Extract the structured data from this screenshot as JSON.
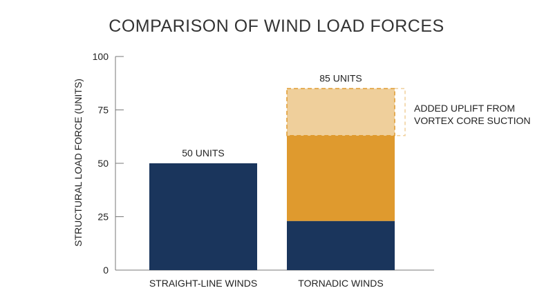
{
  "chart_data": {
    "type": "bar",
    "title": "COMPARISON OF WIND LOAD FORCES",
    "ylabel": "STRUCTURAL LOAD FORCE (UNITS)",
    "xlabel": "",
    "ylim": [
      0,
      100
    ],
    "yticks": [
      0,
      25,
      50,
      75,
      100
    ],
    "stacked": true,
    "categories": [
      "STRAIGHT-LINE WINDS",
      "TORNADIC WINDS"
    ],
    "series": [
      {
        "values": [
          50,
          23
        ],
        "color": "#1a355c"
      },
      {
        "values": [
          0,
          40
        ],
        "color": "#df9a2e"
      },
      {
        "values": [
          0,
          22
        ],
        "color": "#efcf9b",
        "dashed_outline": true
      }
    ],
    "totals": [
      50,
      85
    ],
    "data_labels": [
      "50 UNITS",
      "85 UNITS"
    ],
    "annotation": {
      "lines": [
        "ADDED UPLIFT FROM",
        "VORTEX CORE SUCTION"
      ],
      "target_category": "TORNADIC WINDS",
      "range": [
        63,
        85
      ]
    },
    "grid": false,
    "legend": "none"
  }
}
